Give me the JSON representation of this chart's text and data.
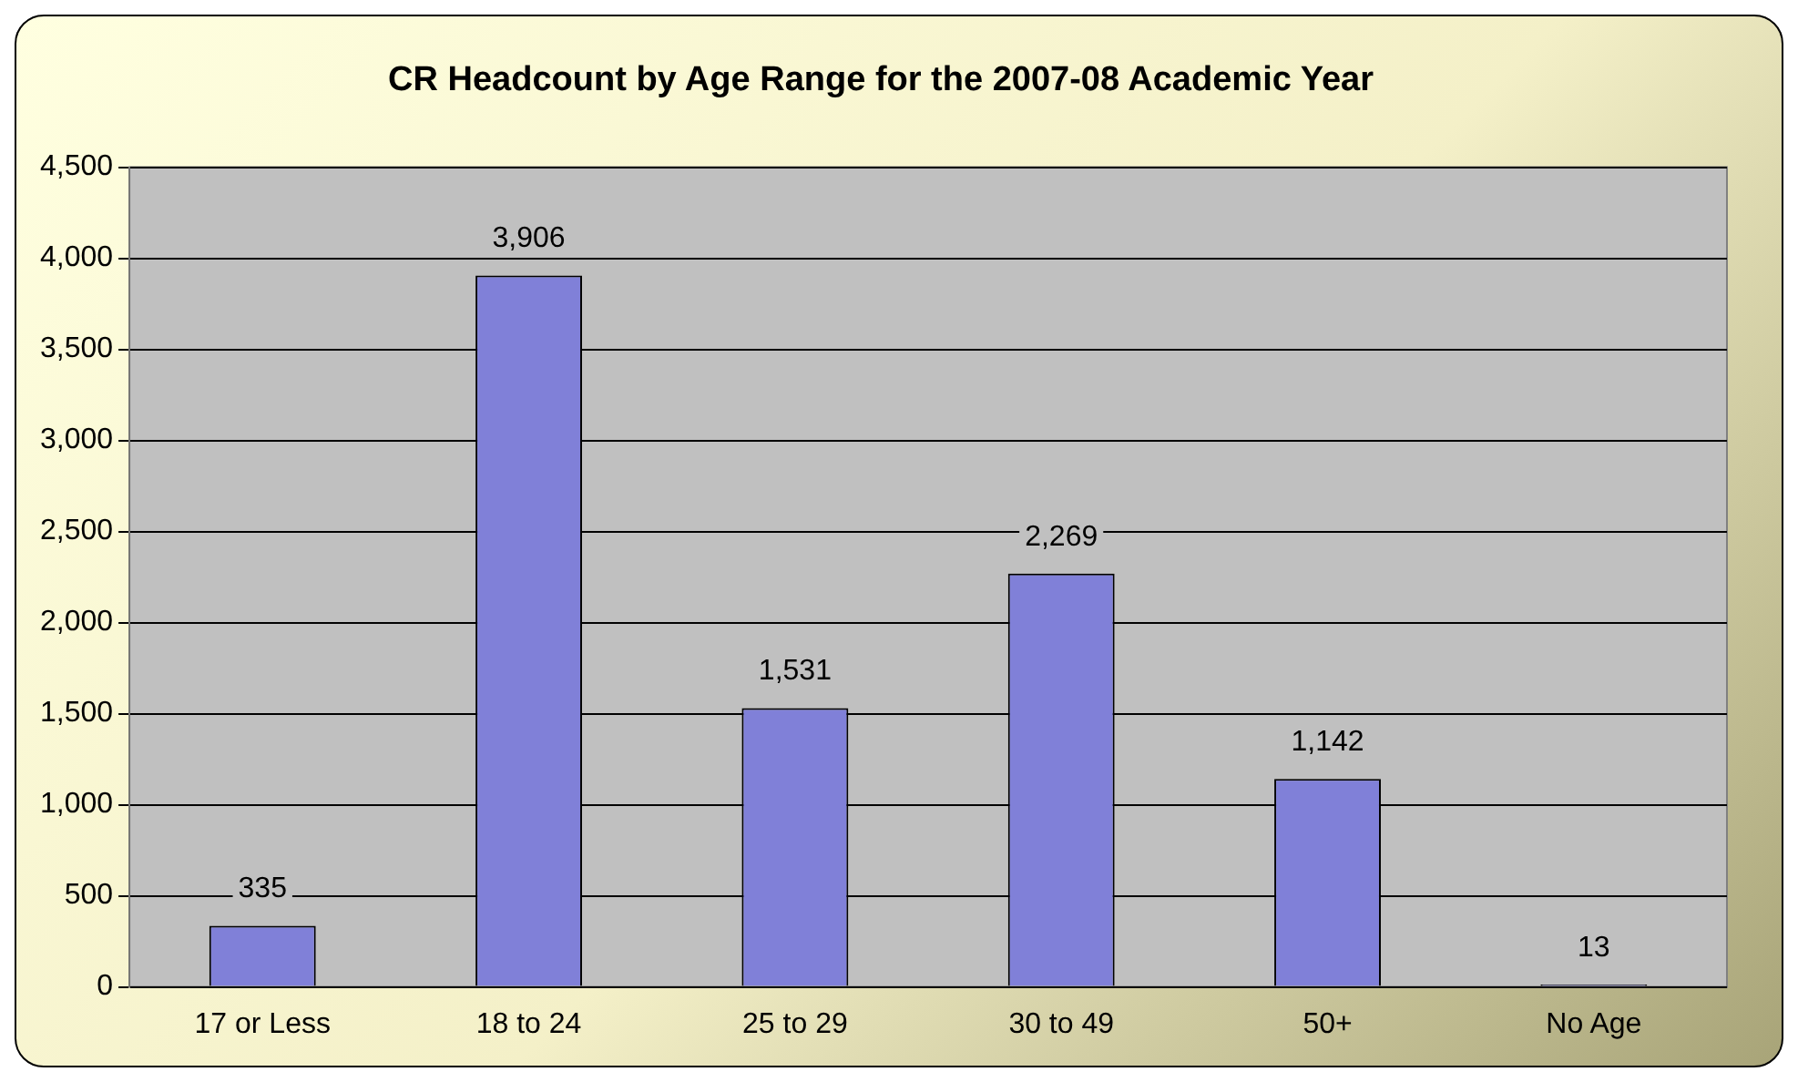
{
  "chart_data": {
    "type": "bar",
    "title": "CR Headcount by Age Range for the 2007-08 Academic Year",
    "categories": [
      "17 or Less",
      "18 to 24",
      "25 to 29",
      "30 to 49",
      "50+",
      "No Age"
    ],
    "values": [
      335,
      3906,
      1531,
      2269,
      1142,
      13
    ],
    "color": "#8080d8",
    "ylim": [
      0,
      4500
    ],
    "yticks": [
      0,
      500,
      {
        "value": 1000,
        "label": "1,000"
      },
      {
        "value": 1500,
        "label": "1,500"
      },
      {
        "value": 2000,
        "label": "2,000"
      },
      {
        "value": 2500,
        "label": "2,500"
      },
      {
        "value": 3000,
        "label": "3,000"
      },
      {
        "value": 3500,
        "label": "3,500"
      },
      {
        "value": 4000,
        "label": "4,000"
      },
      {
        "value": 4500,
        "label": "4,500"
      }
    ],
    "grid": "y",
    "value_labels": [
      "335",
      "3,906",
      "1,531",
      "2,269",
      "1,142",
      "13"
    ]
  }
}
